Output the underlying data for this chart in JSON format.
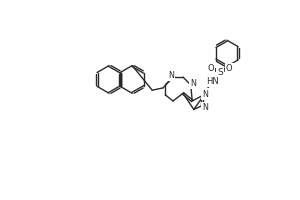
{
  "background_color": "#ffffff",
  "line_color": "#2a2a2a",
  "line_width": 1.0,
  "figsize": [
    3.0,
    2.0
  ],
  "dpi": 100,
  "xlim": [
    0,
    300
  ],
  "ylim": [
    0,
    200
  ]
}
